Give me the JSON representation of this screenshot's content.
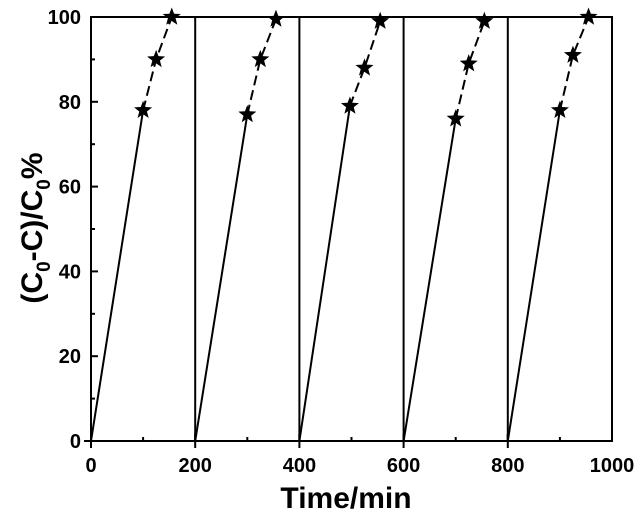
{
  "chart_data": {
    "type": "line",
    "title": "",
    "xlabel": "Time/min",
    "ylabel_parts": {
      "open": "(C",
      "sub1": "0",
      "mid": "-C)/C",
      "sub2": "0",
      "unit": "%"
    },
    "xlim": [
      0,
      1000
    ],
    "ylim": [
      0,
      100
    ],
    "x_ticks": [
      0,
      200,
      400,
      600,
      800,
      1000
    ],
    "y_ticks": [
      0,
      20,
      40,
      60,
      80,
      100
    ],
    "grid": false,
    "legend": "none",
    "cycle_boundaries": [
      200,
      400,
      600,
      800
    ],
    "series": [
      {
        "x": [
          0,
          100,
          125,
          155
        ],
        "y": [
          0,
          78,
          90,
          100
        ]
      },
      {
        "x": [
          200,
          300,
          325,
          355
        ],
        "y": [
          0,
          77,
          90,
          99.5
        ]
      },
      {
        "x": [
          400,
          497,
          525,
          555
        ],
        "y": [
          0,
          79,
          88,
          99
        ]
      },
      {
        "x": [
          600,
          700,
          725,
          755
        ],
        "y": [
          0,
          76,
          89,
          99
        ]
      },
      {
        "x": [
          800,
          900,
          925,
          955
        ],
        "y": [
          0,
          78,
          91,
          100
        ]
      }
    ],
    "colors": {
      "line": "#000000",
      "marker": "#000000",
      "axis": "#000000"
    }
  }
}
